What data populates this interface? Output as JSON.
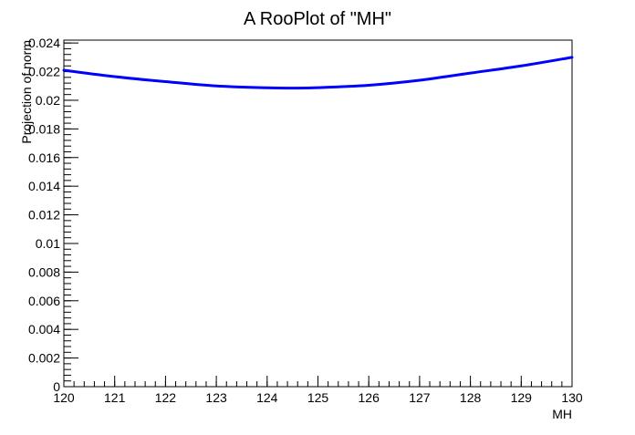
{
  "chart_data": {
    "type": "line",
    "title": "A RooPlot of \"MH\"",
    "xlabel": "MH",
    "ylabel": "Projection of norm",
    "xlim": [
      120,
      130
    ],
    "ylim": [
      0,
      0.0242
    ],
    "x_ticks": [
      120,
      121,
      122,
      123,
      124,
      125,
      126,
      127,
      128,
      129,
      130
    ],
    "x_tick_labels": [
      "120",
      "121",
      "122",
      "123",
      "124",
      "125",
      "126",
      "127",
      "128",
      "129",
      "130"
    ],
    "y_ticks": [
      0,
      0.002,
      0.004,
      0.006,
      0.008,
      0.01,
      0.012,
      0.014,
      0.016,
      0.018,
      0.02,
      0.022,
      0.024
    ],
    "y_tick_labels": [
      "0",
      "0.002",
      "0.004",
      "0.006",
      "0.008",
      "0.01",
      "0.012",
      "0.014",
      "0.016",
      "0.018",
      "0.02",
      "0.022",
      "0.024"
    ],
    "grid": false,
    "legend": "none",
    "series": [
      {
        "color": "#0000ff",
        "x": [
          120,
          121,
          122,
          123,
          124,
          124.5,
          125,
          126,
          127,
          128,
          129,
          130
        ],
        "y": [
          0.0221,
          0.02165,
          0.0213,
          0.021,
          0.02087,
          0.02085,
          0.02088,
          0.02105,
          0.0214,
          0.0219,
          0.0224,
          0.023
        ]
      }
    ]
  }
}
